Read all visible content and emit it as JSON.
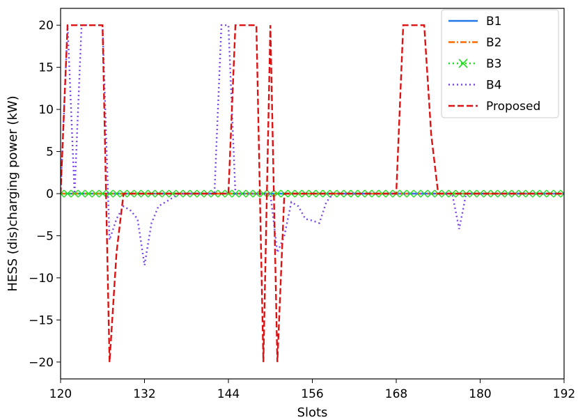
{
  "chart_data": {
    "type": "line",
    "title": "",
    "xlabel": "Slots",
    "ylabel": "HESS (dis)charging power (kW)",
    "xlim": [
      120,
      192
    ],
    "ylim": [
      -22,
      22
    ],
    "xticks": [
      120,
      132,
      144,
      156,
      168,
      180,
      192
    ],
    "xtick_labels": [
      "120",
      "132",
      "144",
      "156",
      "168",
      "180",
      "192"
    ],
    "yticks": [
      -20,
      -15,
      -10,
      -5,
      0,
      5,
      10,
      15,
      20
    ],
    "ytick_labels": [
      "−20",
      "−15",
      "−10",
      "−5",
      "0",
      "5",
      "10",
      "15",
      "20"
    ],
    "grid": false,
    "legend_position": "top-right",
    "series": [
      {
        "name": "B1",
        "color": "#1f77e8",
        "style": "solid",
        "marker": "none",
        "x": [
          120,
          192
        ],
        "y": [
          0,
          0
        ]
      },
      {
        "name": "B2",
        "color": "#ff6a00",
        "style": "dashdot",
        "marker": "none",
        "x": [
          120,
          192
        ],
        "y": [
          0,
          0
        ]
      },
      {
        "name": "B3",
        "color": "#22dd22",
        "style": "dotted",
        "marker": "x",
        "x": [
          120,
          121,
          122,
          123,
          124,
          125,
          126,
          127,
          128,
          129,
          130,
          131,
          132,
          133,
          134,
          135,
          136,
          137,
          138,
          139,
          140,
          141,
          142,
          143,
          144,
          145,
          146,
          147,
          148,
          149,
          150,
          151,
          152,
          153,
          154,
          155,
          156,
          157,
          158,
          159,
          160,
          161,
          162,
          163,
          164,
          165,
          166,
          167,
          168,
          169,
          170,
          171,
          172,
          173,
          174,
          175,
          176,
          177,
          178,
          179,
          180,
          181,
          182,
          183,
          184,
          185,
          186,
          187,
          188,
          189,
          190,
          191,
          192
        ],
        "y": [
          0,
          0,
          0,
          0,
          0,
          0,
          0,
          0,
          0,
          0,
          0,
          0,
          0,
          0,
          0,
          0,
          0,
          0,
          0,
          0,
          0,
          0,
          0,
          0,
          0,
          0,
          0,
          0,
          0,
          0,
          0,
          0,
          0,
          0,
          0,
          0,
          0,
          0,
          0,
          0,
          0,
          0,
          0,
          0,
          0,
          0,
          0,
          0,
          0,
          0,
          0,
          0,
          0,
          0,
          0,
          0,
          0,
          0,
          0,
          0,
          0,
          0,
          0,
          0,
          0,
          0,
          0,
          0,
          0,
          0,
          0,
          0,
          0
        ]
      },
      {
        "name": "B4",
        "color": "#7744ee",
        "style": "dotted",
        "marker": "none",
        "x": [
          120,
          121,
          122,
          123,
          124,
          125,
          126,
          127,
          128,
          129,
          130,
          131,
          132,
          133,
          134,
          135,
          136,
          137,
          138,
          139,
          140,
          141,
          142,
          143,
          144,
          145,
          146,
          147,
          148,
          149,
          150,
          151,
          152,
          153,
          154,
          155,
          156,
          157,
          158,
          159,
          160,
          161,
          162,
          163,
          164,
          165,
          166,
          167,
          168,
          169,
          170,
          171,
          172,
          173,
          174,
          175,
          176,
          177,
          178,
          179,
          180,
          181,
          182,
          183,
          184,
          185,
          186,
          187,
          188,
          189,
          190,
          191,
          192
        ],
        "y": [
          0,
          20,
          0,
          20,
          20,
          20,
          20,
          -5.5,
          -3,
          -1.5,
          -2,
          -3,
          -8.5,
          -3.5,
          -1.5,
          -1,
          -0.5,
          0,
          0,
          0,
          0,
          0,
          0,
          20,
          20,
          0,
          0,
          0,
          0,
          0,
          0,
          -7,
          -5,
          -1,
          -1.5,
          -3,
          -3.2,
          -3.5,
          -1,
          0,
          0,
          0,
          0,
          0,
          0,
          0,
          0,
          0,
          0,
          0,
          0,
          0,
          0,
          0,
          0,
          0,
          0,
          -4.2,
          0,
          0,
          0,
          0,
          0,
          0,
          0,
          0,
          0,
          0,
          0,
          0,
          0,
          0,
          0
        ]
      },
      {
        "name": "Proposed",
        "color": "#dd1111",
        "style": "dashed",
        "marker": "none",
        "x": [
          120,
          121,
          122,
          123,
          124,
          125,
          126,
          127,
          128,
          129,
          130,
          131,
          132,
          133,
          134,
          135,
          136,
          137,
          138,
          139,
          140,
          141,
          142,
          143,
          144,
          145,
          146,
          147,
          148,
          149,
          150,
          151,
          152,
          153,
          154,
          155,
          156,
          157,
          158,
          159,
          160,
          161,
          162,
          163,
          164,
          165,
          166,
          167,
          168,
          169,
          170,
          171,
          172,
          173,
          174,
          175,
          176,
          177,
          178,
          179,
          180,
          181,
          182,
          183,
          184,
          185,
          186,
          187,
          188,
          189,
          190,
          191,
          192
        ],
        "y": [
          0,
          20,
          20,
          20,
          20,
          20,
          20,
          -20,
          -7,
          0,
          0,
          0,
          0,
          0,
          0,
          0,
          0,
          0,
          0,
          0,
          0,
          0,
          0,
          0,
          0,
          20,
          20,
          20,
          20,
          -20,
          20,
          -20,
          0,
          0,
          0,
          0,
          0,
          0,
          0,
          0,
          0,
          0,
          0,
          0,
          0,
          0,
          0,
          0,
          0,
          20,
          20,
          20,
          20,
          7,
          0,
          0,
          0,
          0,
          0,
          0,
          0,
          0,
          0,
          0,
          0,
          0,
          0,
          0,
          0,
          0,
          0,
          0,
          0
        ]
      }
    ]
  }
}
